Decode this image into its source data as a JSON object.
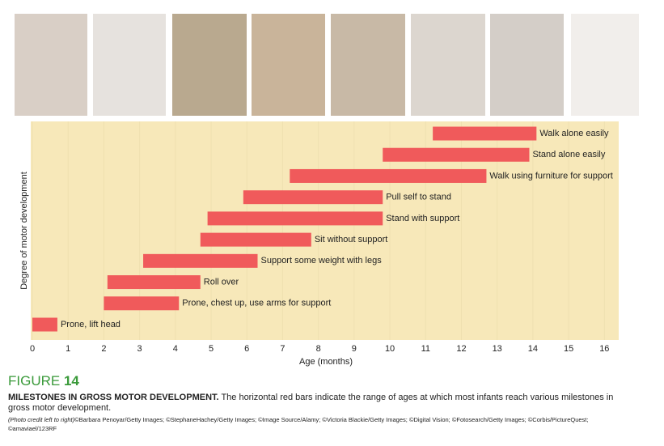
{
  "chart_data": {
    "type": "range_bar",
    "categories": [
      "Prone, lift head",
      "Prone, chest up, use arms for support",
      "Roll over",
      "Support some weight with legs",
      "Sit without support",
      "Stand with support",
      "Pull self to stand",
      "Walk using furniture for support",
      "Stand alone easily",
      "Walk alone easily"
    ],
    "start": [
      0,
      2,
      2.1,
      3.1,
      4.7,
      4.9,
      5.9,
      7.2,
      9.8,
      11.2
    ],
    "end": [
      0.7,
      4.1,
      4.7,
      6.3,
      7.8,
      9.8,
      9.8,
      12.7,
      13.9,
      14.1
    ],
    "color": "#f05a5b",
    "background": "#f7e8b9",
    "grid": true,
    "xlim": [
      0,
      16.4
    ],
    "xticks": [
      0,
      1,
      2,
      3,
      4,
      5,
      6,
      7,
      8,
      9,
      10,
      11,
      12,
      13,
      14,
      15,
      16
    ],
    "xlabel": "Age (months)",
    "ylabel": "Degree of motor development"
  },
  "caption": {
    "figure_label": "FIGURE",
    "figure_number": "14",
    "title": "MILESTONES IN GROSS MOTOR DEVELOPMENT.",
    "text": "The horizontal red bars indicate the range of ages at which most infants reach various milestones in gross motor development.",
    "credit_intro": "(Photo credit left to right)",
    "credits": "©Barbara Penoyar/Getty Images; ©StephaneHachey/Getty Images; ©Image Source/Alamy; ©Victoria Blackie/Getty Images; ©Digital Vision; ©Fotosearch/Getty Images; ©Corbis/PictureQuest; ©amaviael/123RF"
  }
}
